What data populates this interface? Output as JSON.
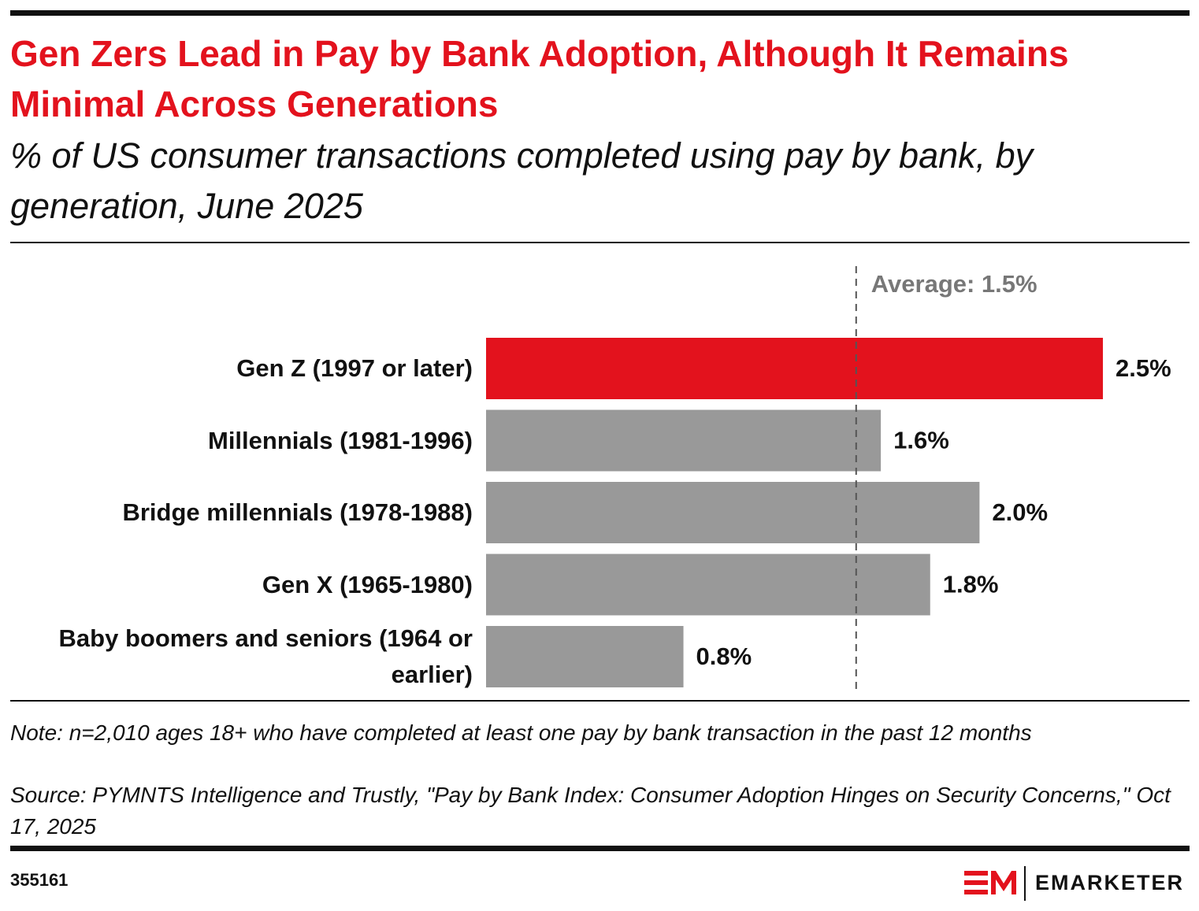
{
  "chart_data": {
    "type": "bar",
    "orientation": "horizontal",
    "title": "Gen Zers Lead in Pay by Bank Adoption, Although It Remains Minimal Across Generations",
    "subtitle": "% of US consumer transactions completed using pay by bank, by generation, June 2025",
    "categories": [
      "Gen Z (1997 or later)",
      "Millennials (1981-1996)",
      "Bridge millennials (1978-1988)",
      "Gen X (1965-1980)",
      "Baby boomers and seniors (1964 or earlier)"
    ],
    "values": [
      2.5,
      1.6,
      2.0,
      1.8,
      0.8
    ],
    "value_labels": [
      "2.5%",
      "1.6%",
      "2.0%",
      "1.8%",
      "0.8%"
    ],
    "colors": [
      "#e3121d",
      "#999999",
      "#999999",
      "#999999",
      "#999999"
    ],
    "average": {
      "value": 1.5,
      "label": "Average: 1.5%"
    },
    "note": "Note: n=2,010 ages 18+ who have completed at least one pay by bank transaction in the past 12 months",
    "source": "Source: PYMNTS Intelligence and Trustly, \"Pay by Bank Index: Consumer Adoption Hinges on Security Concerns,\" Oct 17, 2025",
    "chart_id": "355161",
    "logo": "EMARKETER"
  }
}
